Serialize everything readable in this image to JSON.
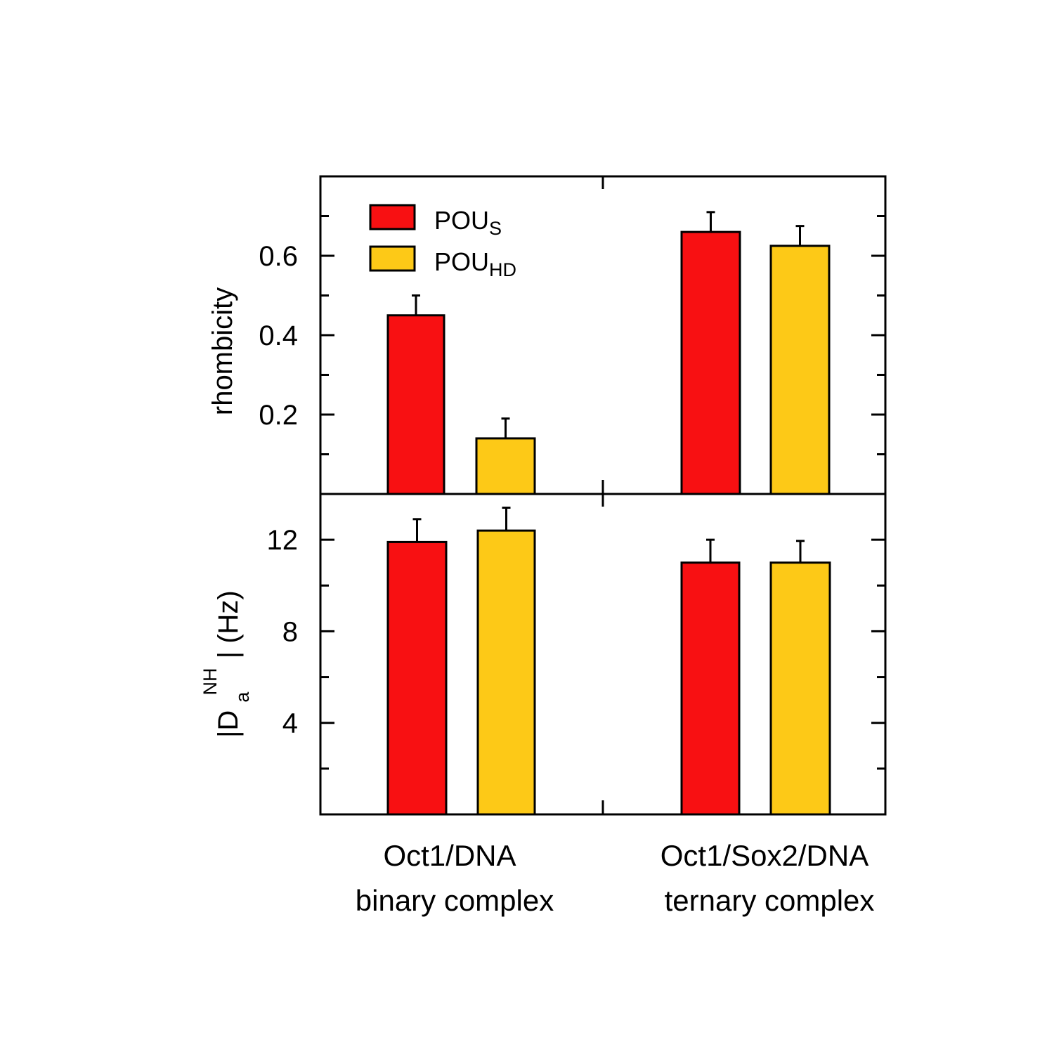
{
  "chart_data": [
    {
      "type": "bar",
      "panel": "top",
      "categories": [
        "Oct1/DNA binary complex",
        "Oct1/Sox2/DNA ternary complex"
      ],
      "ylabel": "rhombicity",
      "ylim": [
        0,
        0.8
      ],
      "yticks": [
        0.2,
        0.4,
        0.6
      ],
      "series": [
        {
          "name": "POUS",
          "values": [
            0.45,
            0.66
          ],
          "errors": [
            0.05,
            0.05
          ]
        },
        {
          "name": "POUHD",
          "values": [
            0.14,
            0.625
          ],
          "errors": [
            0.05,
            0.05
          ]
        }
      ],
      "legend": "top-left"
    },
    {
      "type": "bar",
      "panel": "bottom",
      "categories": [
        "Oct1/DNA binary complex",
        "Oct1/Sox2/DNA ternary complex"
      ],
      "ylabel": "|Da NH| (Hz)",
      "ylim": [
        0,
        14
      ],
      "yticks": [
        4,
        8,
        12
      ],
      "series": [
        {
          "name": "POUS",
          "values": [
            11.9,
            11.0
          ],
          "errors": [
            1.0,
            1.0
          ]
        },
        {
          "name": "POUHD",
          "values": [
            12.4,
            11.0
          ],
          "errors": [
            1.0,
            0.95
          ]
        }
      ]
    }
  ],
  "legend": [
    {
      "main": "POU",
      "sub": "S",
      "color": "#f81012"
    },
    {
      "main": "POU",
      "sub": "HD",
      "color": "#fdc917"
    }
  ],
  "axis_titles": {
    "top": "rhombicity",
    "bottom_prefix": "|D",
    "bottom_sup": "NH",
    "bottom_sub": "a",
    "bottom_suffix": "| (Hz)"
  },
  "category_labels": [
    {
      "line1": "Oct1/DNA",
      "line2": "binary complex"
    },
    {
      "line1": "Oct1/Sox2/DNA",
      "line2": "ternary complex"
    }
  ],
  "colors": {
    "series1": "#f81012",
    "series2": "#fdc917"
  }
}
